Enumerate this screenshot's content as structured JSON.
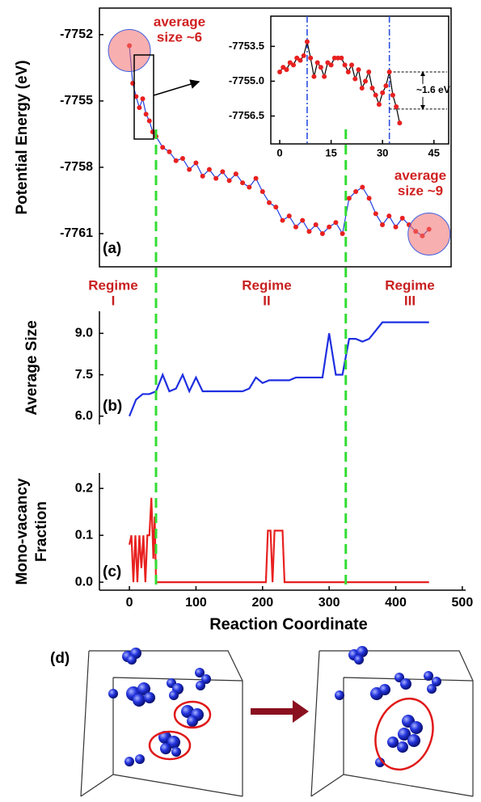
{
  "chart_data": [
    {
      "type": "line",
      "panel_label": "(a)",
      "ylabel": "Potential Energy (eV)",
      "x": [
        0,
        5,
        10,
        15,
        20,
        25,
        30,
        35,
        40,
        50,
        60,
        70,
        80,
        90,
        100,
        110,
        120,
        130,
        140,
        150,
        160,
        170,
        180,
        190,
        200,
        210,
        220,
        230,
        240,
        250,
        260,
        270,
        280,
        290,
        300,
        310,
        320,
        330,
        340,
        350,
        360,
        370,
        380,
        390,
        400,
        410,
        420,
        430,
        440,
        450
      ],
      "series": [
        {
          "color": "#1f3fe0",
          "marker_color": "#e82020",
          "values": [
            -7752.5,
            -7754.2,
            -7754.8,
            -7755.3,
            -7754.9,
            -7755.6,
            -7755.9,
            -7756.4,
            -7756.6,
            -7757.1,
            -7757.3,
            -7757.7,
            -7757.6,
            -7758.1,
            -7757.8,
            -7758.4,
            -7758.1,
            -7758.5,
            -7758.2,
            -7758.6,
            -7758.3,
            -7758.7,
            -7758.9,
            -7758.5,
            -7759.1,
            -7759.6,
            -7759.8,
            -7760.4,
            -7760.2,
            -7760.7,
            -7760.4,
            -7760.9,
            -7760.6,
            -7761.0,
            -7760.7,
            -7760.5,
            -7761.0,
            -7759.4,
            -7759.1,
            -7758.9,
            -7759.4,
            -7760.1,
            -7760.6,
            -7760.2,
            -7760.7,
            -7760.3,
            -7760.6,
            -7760.9,
            -7761.1,
            -7760.8
          ]
        }
      ],
      "xlim": [
        -45,
        505
      ],
      "ylim": [
        -7762.5,
        -7750.8
      ],
      "yticks": [
        -7752,
        -7755,
        -7758,
        -7761
      ],
      "annotations": [
        [
          "average",
          "size ~6"
        ],
        [
          "average",
          "size ~9"
        ]
      ],
      "regimes": [
        [
          "Regime",
          "I"
        ],
        [
          "Regime",
          "II"
        ],
        [
          "Regime",
          "III"
        ]
      ],
      "regime_boundaries": [
        40,
        325
      ]
    },
    {
      "type": "line",
      "x": [
        0,
        1,
        2,
        3,
        4,
        5,
        6,
        7,
        8,
        9,
        10,
        11,
        12,
        13,
        14,
        15,
        16,
        17,
        18,
        19,
        20,
        21,
        22,
        23,
        24,
        25,
        26,
        27,
        28,
        29,
        30,
        31,
        32,
        33,
        34,
        35
      ],
      "series": [
        {
          "color": "#000000",
          "marker_color": "#e82020",
          "values": [
            -7754.6,
            -7754.4,
            -7754.5,
            -7754.2,
            -7754.3,
            -7754.0,
            -7754.1,
            -7753.9,
            -7753.3,
            -7754.0,
            -7754.8,
            -7754.2,
            -7754.4,
            -7754.8,
            -7754.2,
            -7754.3,
            -7754.0,
            -7754.0,
            -7754.0,
            -7754.3,
            -7754.6,
            -7754.3,
            -7754.9,
            -7754.5,
            -7755.3,
            -7755.0,
            -7754.6,
            -7755.3,
            -7755.6,
            -7756.0,
            -7755.5,
            -7755.2,
            -7754.6,
            -7755.6,
            -7756.1,
            -7756.8
          ]
        }
      ],
      "xlim": [
        -2.6,
        49.3
      ],
      "ylim": [
        -7757.7,
        -7752.2
      ],
      "xticks": [
        0,
        15,
        30,
        45
      ],
      "yticks": [
        -7753.5,
        {
          "value": -7755,
          "label": "-7755.0"
        },
        -7756.5
      ],
      "vlines": [
        8,
        32
      ],
      "levels": [
        -7754.6,
        -7756.2
      ],
      "annotation": "~1.6 eV"
    },
    {
      "type": "line",
      "panel_label": "(b)",
      "ylabel": "Average Size",
      "x": [
        0,
        10,
        20,
        30,
        40,
        50,
        60,
        70,
        80,
        90,
        100,
        110,
        120,
        130,
        140,
        150,
        160,
        170,
        180,
        190,
        200,
        210,
        220,
        230,
        240,
        250,
        260,
        270,
        280,
        290,
        300,
        310,
        320,
        330,
        340,
        350,
        360,
        370,
        380,
        390,
        400,
        410,
        420,
        430,
        440,
        450
      ],
      "series": [
        {
          "color": "#1f2fe0",
          "values": [
            6.0,
            6.6,
            6.8,
            6.8,
            6.9,
            7.5,
            6.9,
            7.0,
            7.5,
            6.9,
            7.4,
            6.9,
            6.9,
            6.9,
            6.9,
            6.9,
            6.9,
            6.9,
            7.0,
            7.4,
            7.2,
            7.3,
            7.3,
            7.3,
            7.3,
            7.4,
            7.4,
            7.4,
            7.4,
            7.4,
            9.0,
            7.5,
            7.5,
            8.8,
            8.8,
            8.7,
            8.8,
            9.1,
            9.4,
            9.4,
            9.4,
            9.4,
            9.4,
            9.4,
            9.4,
            9.4
          ]
        }
      ],
      "xlim": [
        -45,
        505
      ],
      "ylim": [
        5.7,
        9.8
      ],
      "yticks": [
        {
          "value": 6,
          "label": "6.0"
        },
        7.5,
        {
          "value": 9,
          "label": "9.0"
        }
      ]
    },
    {
      "type": "line",
      "panel_label": "(c)",
      "ylabel": [
        "Mono-vacancy",
        "Fraction"
      ],
      "xlabel": "Reaction Coordinate",
      "x": [
        0,
        3,
        6,
        9,
        12,
        15,
        18,
        21,
        24,
        27,
        30,
        33,
        36,
        38,
        40,
        205,
        208,
        212,
        215,
        218,
        225,
        230,
        233,
        450
      ],
      "series": [
        {
          "color": "#e82020",
          "values": [
            0.08,
            0.1,
            0,
            0.1,
            0,
            0.1,
            0.03,
            0.1,
            0,
            0.1,
            0.1,
            0.18,
            0.05,
            0.14,
            0,
            0,
            0.11,
            0.11,
            0,
            0.11,
            0.11,
            0.11,
            0,
            0
          ]
        }
      ],
      "xlim": [
        -45,
        505
      ],
      "ylim": [
        -0.017,
        0.233
      ],
      "xticks": [
        0,
        100,
        200,
        300,
        400,
        500
      ],
      "yticks": [
        0.2,
        0.1,
        {
          "value": 0,
          "label": "0.0"
        }
      ]
    }
  ],
  "panel_d": {
    "label": "(d)"
  }
}
